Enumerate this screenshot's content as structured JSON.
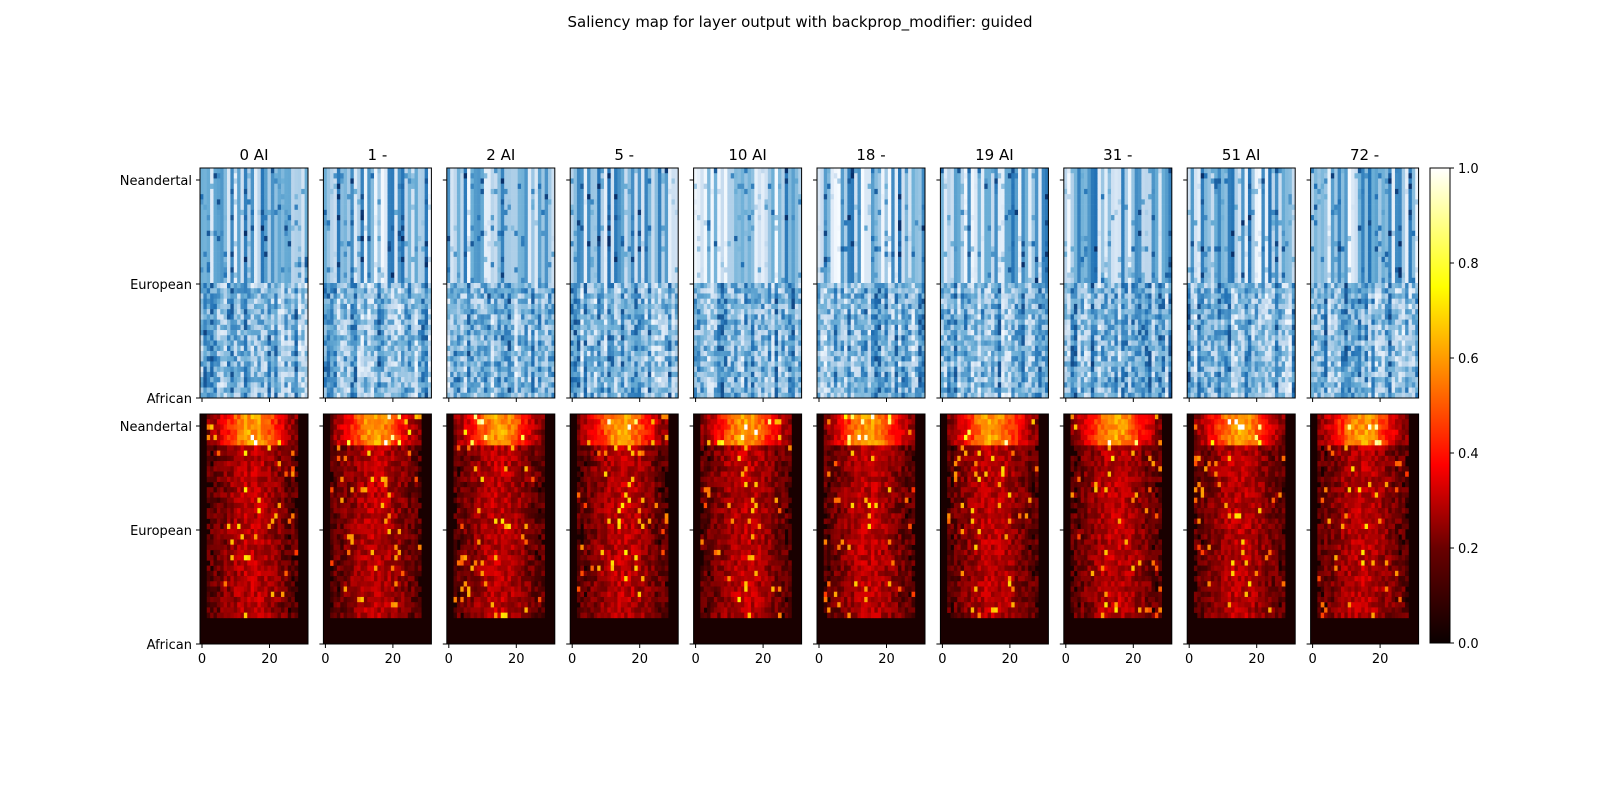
{
  "figure": {
    "title": "Saliency map for layer output with backprop_modifier: guided"
  },
  "chart_data": {
    "type": "heatmap",
    "title": "Saliency map for layer output with backprop_modifier: guided",
    "panel_titles": [
      "0 AI",
      "1 -",
      "2 AI",
      "5 -",
      "10 AI",
      "18 -",
      "19 AI",
      "31 -",
      "51 AI",
      "72 -"
    ],
    "row_labels": [
      "Neandertal",
      "European",
      "African"
    ],
    "row_label_values": [
      0,
      22,
      44
    ],
    "x_ticks": [
      0,
      20
    ],
    "xlim": [
      0,
      32
    ],
    "ylim": [
      0,
      44
    ],
    "rows": [
      {
        "name": "input",
        "colormap": "Blues",
        "colorbar": false
      },
      {
        "name": "saliency",
        "colormap": "hot",
        "colorbar": true
      }
    ],
    "colorbar": {
      "colormap": "hot",
      "range": [
        0.0,
        1.0
      ],
      "ticks": [
        "0.0",
        "0.2",
        "0.4",
        "0.6",
        "0.8",
        "1.0"
      ]
    }
  }
}
